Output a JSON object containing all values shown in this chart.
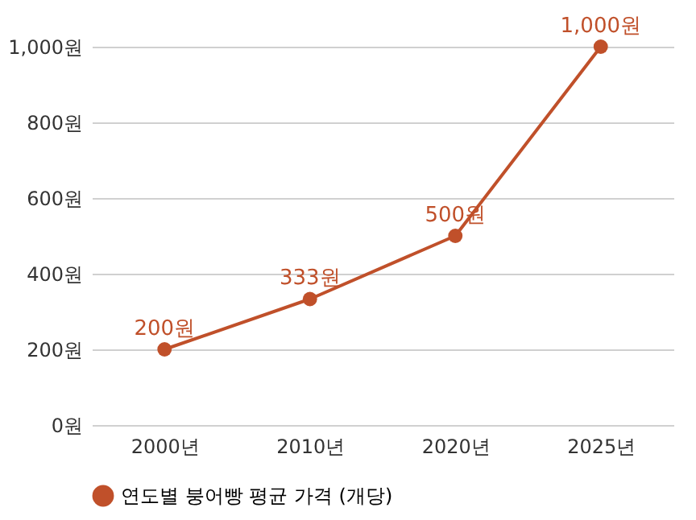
{
  "chart_data": {
    "type": "line",
    "categories": [
      "2000년",
      "2010년",
      "2020년",
      "2025년"
    ],
    "series": [
      {
        "name": "연도별 붕어빵 평균 가격 (개당)",
        "color": "#c0502a",
        "values": [
          200,
          333,
          500,
          1000
        ],
        "value_labels": [
          "200원",
          "333원",
          "500원",
          "1,000원"
        ]
      }
    ],
    "ylim": [
      0,
      1000
    ],
    "yticks": [
      {
        "value": 0,
        "label": "0원"
      },
      {
        "value": 200,
        "label": "200원"
      },
      {
        "value": 400,
        "label": "400원"
      },
      {
        "value": 600,
        "label": "600원"
      },
      {
        "value": 800,
        "label": "800원"
      },
      {
        "value": 1000,
        "label": "1,000원"
      }
    ],
    "grid": "y",
    "legend": "bottom",
    "marker": "circle",
    "line_style": "solid"
  }
}
